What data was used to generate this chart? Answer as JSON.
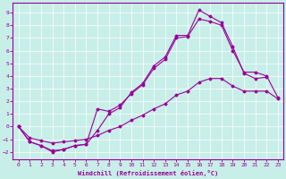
{
  "xlabel": "Windchill (Refroidissement éolien,°C)",
  "bg_color": "#c8eee8",
  "line_color": "#990099",
  "grid_color": "#ffffff",
  "xlim": [
    -0.5,
    23.5
  ],
  "ylim": [
    -2.6,
    9.8
  ],
  "xticks": [
    0,
    1,
    2,
    3,
    4,
    5,
    6,
    7,
    8,
    9,
    10,
    11,
    12,
    13,
    14,
    15,
    16,
    17,
    18,
    19,
    20,
    21,
    22,
    23
  ],
  "yticks": [
    -2,
    -1,
    0,
    1,
    2,
    3,
    4,
    5,
    6,
    7,
    8,
    9
  ],
  "upper_x": [
    0,
    1,
    2,
    3,
    4,
    5,
    6,
    7,
    8,
    9,
    10,
    11,
    12,
    13,
    14,
    15,
    16,
    17,
    18,
    19,
    20,
    21,
    22
  ],
  "upper_y": [
    0,
    -1.2,
    -1.5,
    -2.0,
    -1.8,
    -1.5,
    -1.4,
    -0.3,
    1.0,
    1.5,
    2.7,
    3.4,
    4.8,
    5.5,
    7.2,
    7.2,
    9.2,
    8.7,
    8.2,
    6.3,
    4.2,
    3.8,
    3.9
  ],
  "mid_x": [
    0,
    1,
    2,
    3,
    4,
    5,
    6,
    7,
    8,
    9,
    10,
    11,
    12,
    13,
    14,
    15,
    16,
    17,
    18,
    19,
    20,
    21,
    22,
    23
  ],
  "mid_y": [
    0,
    -1.2,
    -1.5,
    -1.9,
    -1.8,
    -1.5,
    -1.4,
    1.4,
    1.2,
    1.7,
    2.6,
    3.3,
    4.6,
    5.3,
    7.0,
    7.1,
    8.5,
    8.3,
    8.0,
    6.0,
    4.3,
    4.3,
    4.0,
    2.3
  ],
  "low_x": [
    0,
    1,
    2,
    3,
    4,
    5,
    6,
    7,
    8,
    9,
    10,
    11,
    12,
    13,
    14,
    15,
    16,
    17,
    18,
    19,
    20,
    21,
    22,
    23
  ],
  "low_y": [
    0,
    -0.9,
    -1.1,
    -1.3,
    -1.2,
    -1.1,
    -1.0,
    -0.7,
    -0.3,
    0.0,
    0.5,
    0.9,
    1.4,
    1.8,
    2.5,
    2.8,
    3.5,
    3.8,
    3.8,
    3.2,
    2.8,
    2.8,
    2.8,
    2.2
  ]
}
